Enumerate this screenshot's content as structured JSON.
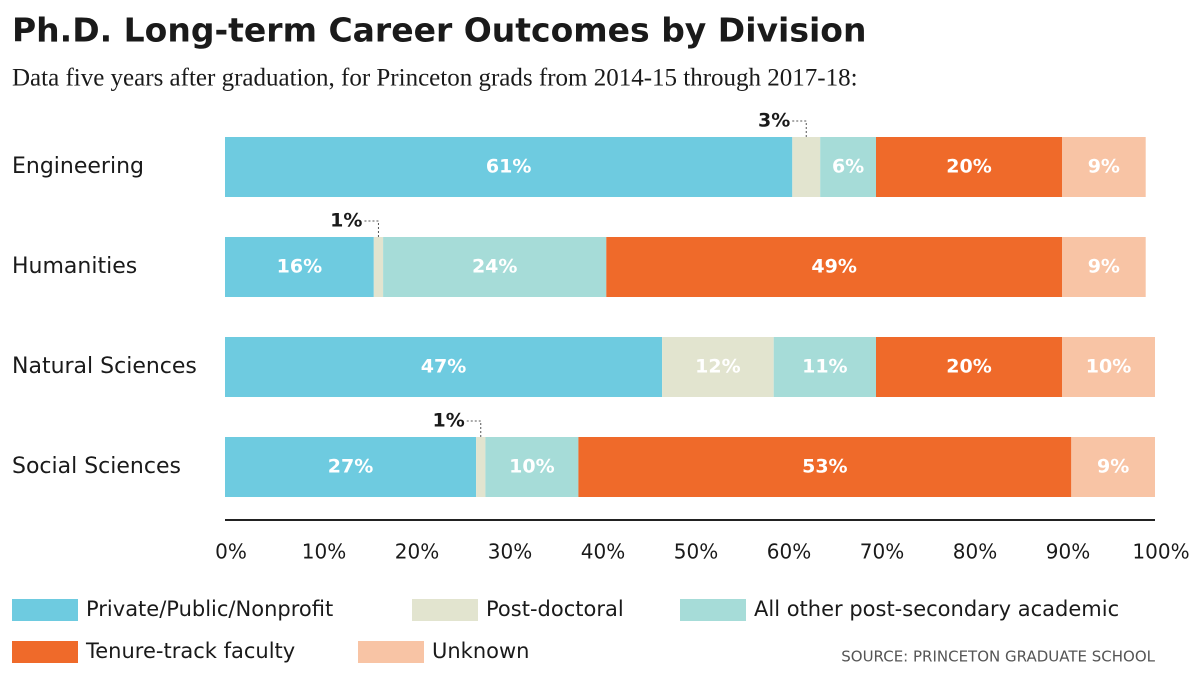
{
  "chart_data": {
    "type": "stacked_barh",
    "title": "Ph.D. Long-term Career Outcomes by Division",
    "subtitle": "Data five years after graduation, for Princeton grads from 2014-15 through 2017-18:",
    "categories": [
      "Engineering",
      "Humanities",
      "Natural Sciences",
      "Social Sciences"
    ],
    "series": [
      {
        "name": "Private/Public/Nonprofit",
        "color": "#6ecbe0",
        "values": [
          61,
          16,
          47,
          27
        ],
        "value_labels": [
          "61%",
          "16%",
          "47%",
          "27%"
        ]
      },
      {
        "name": "Post-doctoral",
        "color": "#e2e4cf",
        "values": [
          3,
          1,
          12,
          1
        ],
        "value_labels": [
          "3%",
          "1%",
          "12%",
          "1%"
        ]
      },
      {
        "name": "All other post-secondary academic",
        "color": "#a6dcd8",
        "values": [
          6,
          24,
          11,
          10
        ],
        "value_labels": [
          "6%",
          "24%",
          "11%",
          "10%"
        ]
      },
      {
        "name": "Tenure-track faculty",
        "color": "#ef6a2a",
        "values": [
          20,
          49,
          20,
          53
        ],
        "value_labels": [
          "20%",
          "49%",
          "20%",
          "53%"
        ]
      },
      {
        "name": "Unknown",
        "color": "#f8c4a5",
        "values": [
          9,
          9,
          10,
          9
        ],
        "value_labels": [
          "9%",
          "9%",
          "10%",
          "9%"
        ]
      }
    ],
    "xlim": [
      0,
      100
    ],
    "xticks": [
      {
        "value": 0,
        "label": "0%"
      },
      {
        "value": 10,
        "label": "10%"
      },
      {
        "value": 20,
        "label": "20%"
      },
      {
        "value": 30,
        "label": "30%"
      },
      {
        "value": 40,
        "label": "40%"
      },
      {
        "value": 50,
        "label": "50%"
      },
      {
        "value": 60,
        "label": "60%"
      },
      {
        "value": 70,
        "label": "70%"
      },
      {
        "value": 80,
        "label": "80%"
      },
      {
        "value": 90,
        "label": "90%"
      },
      {
        "value": 100,
        "label": "100%"
      }
    ],
    "legend": "bottom",
    "source": "SOURCE: PRINCETON GRADUATE SCHOOL"
  }
}
